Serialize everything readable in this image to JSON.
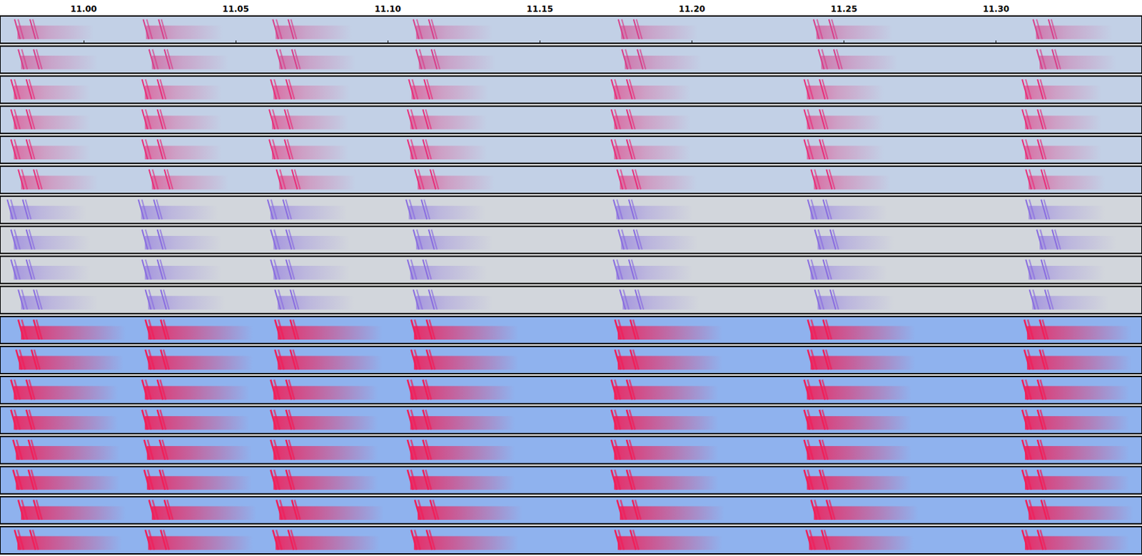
{
  "chart_data": {
    "type": "spectrogram",
    "xlim": [
      10.9725,
      11.348
    ],
    "xticks": [
      {
        "value": 11,
        "label": "11.00"
      },
      11.05,
      {
        "value": 11.1,
        "label": "11.10"
      },
      11.15,
      {
        "value": 11.2,
        "label": "11.20"
      },
      11.25,
      {
        "value": 11.3,
        "label": "11.30"
      }
    ],
    "series": [
      {
        "color": "#d8408a",
        "values": [
          10.9773,
          11.0196,
          11.0622,
          11.1084,
          11.1758,
          11.24,
          11.3122
        ]
      },
      {
        "color": "#d8408a",
        "values": [
          10.9785,
          11.0215,
          11.0634,
          11.1093,
          11.177,
          11.2416,
          11.3134
        ]
      },
      {
        "color": "#e8307a",
        "values": [
          10.9761,
          11.0192,
          11.0615,
          11.1069,
          11.1735,
          11.2369,
          11.3086
        ]
      },
      {
        "color": "#e8307a",
        "values": [
          10.9761,
          11.0192,
          11.061,
          11.1065,
          11.1735,
          11.2369,
          11.3086
        ]
      },
      {
        "color": "#e8307a",
        "values": [
          10.9761,
          11.0192,
          11.061,
          11.1065,
          11.1735,
          11.2369,
          11.3086
        ]
      },
      {
        "color": "#e8307a",
        "values": [
          10.9785,
          11.0215,
          11.0634,
          11.1089,
          11.1754,
          11.2392,
          11.3098
        ]
      },
      {
        "color": "#8a6ee0",
        "values": [
          10.9749,
          11.018,
          11.0605,
          11.106,
          11.1742,
          11.2381,
          11.3098
        ]
      },
      {
        "color": "#8a6ee0",
        "values": [
          10.9761,
          11.0192,
          11.0615,
          11.1084,
          11.1758,
          11.2404,
          11.3134
        ]
      },
      {
        "color": "#8a6ee0",
        "values": [
          10.9761,
          11.0192,
          11.0615,
          11.1065,
          11.1742,
          11.2381,
          11.3098
        ]
      },
      {
        "color": "#8a6ee0",
        "values": [
          10.9785,
          11.0203,
          11.0629,
          11.1084,
          11.1763,
          11.2404,
          11.311
        ]
      },
      {
        "color": "#f0205a",
        "values": [
          10.9785,
          11.0203,
          11.0629,
          11.1077,
          11.1747,
          11.2381,
          11.3093
        ]
      },
      {
        "color": "#f0205a",
        "values": [
          10.9778,
          11.0203,
          11.0629,
          11.1077,
          11.1747,
          11.2381,
          11.3093
        ]
      },
      {
        "color": "#f0205a",
        "values": [
          10.9761,
          11.0192,
          11.0615,
          11.1065,
          11.1735,
          11.2369,
          11.3086
        ]
      },
      {
        "color": "#f0205a",
        "values": [
          10.9761,
          11.0192,
          11.0615,
          11.1065,
          11.1735,
          11.2369,
          11.3086
        ]
      },
      {
        "color": "#f0205a",
        "values": [
          10.9768,
          11.0199,
          11.0615,
          11.1065,
          11.1735,
          11.2369,
          11.3086
        ]
      },
      {
        "color": "#f0205a",
        "values": [
          10.9768,
          11.0199,
          11.0615,
          11.1065,
          11.1735,
          11.2369,
          11.3086
        ]
      },
      {
        "color": "#f0205a",
        "values": [
          10.9785,
          11.0215,
          11.0634,
          11.1089,
          11.1754,
          11.2392,
          11.3098
        ]
      },
      {
        "color": "#f0205a",
        "values": [
          10.9773,
          11.0203,
          11.0622,
          11.1077,
          11.1747,
          11.2376,
          11.3086
        ]
      }
    ]
  }
}
